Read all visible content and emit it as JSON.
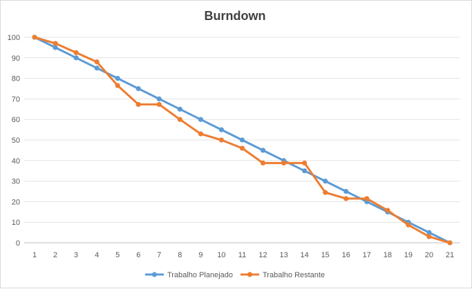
{
  "chart_data": {
    "type": "line",
    "title": "Burndown",
    "x": [
      1,
      2,
      3,
      4,
      5,
      6,
      7,
      8,
      9,
      10,
      11,
      12,
      13,
      14,
      15,
      16,
      17,
      18,
      19,
      20,
      21
    ],
    "ylim": [
      0,
      100
    ],
    "yticks": [
      0,
      10,
      20,
      30,
      40,
      50,
      60,
      70,
      80,
      90,
      100
    ],
    "grid": true,
    "legend_position": "bottom",
    "series": [
      {
        "name": "Trabalho Planejado",
        "color": "#5b9bd5",
        "values": [
          100,
          95,
          90,
          85,
          80,
          75,
          70,
          65,
          60,
          55,
          50,
          45,
          40,
          35,
          30,
          25,
          20,
          15,
          10,
          5,
          0
        ]
      },
      {
        "name": "Trabalho Restante",
        "color": "#ed7d31",
        "values": [
          100,
          97,
          92.5,
          88,
          76.5,
          67.3,
          67.3,
          60,
          53,
          50,
          46,
          38.8,
          38.8,
          38.8,
          24.5,
          21.5,
          21.5,
          15.8,
          8.7,
          3,
          0
        ]
      }
    ]
  }
}
